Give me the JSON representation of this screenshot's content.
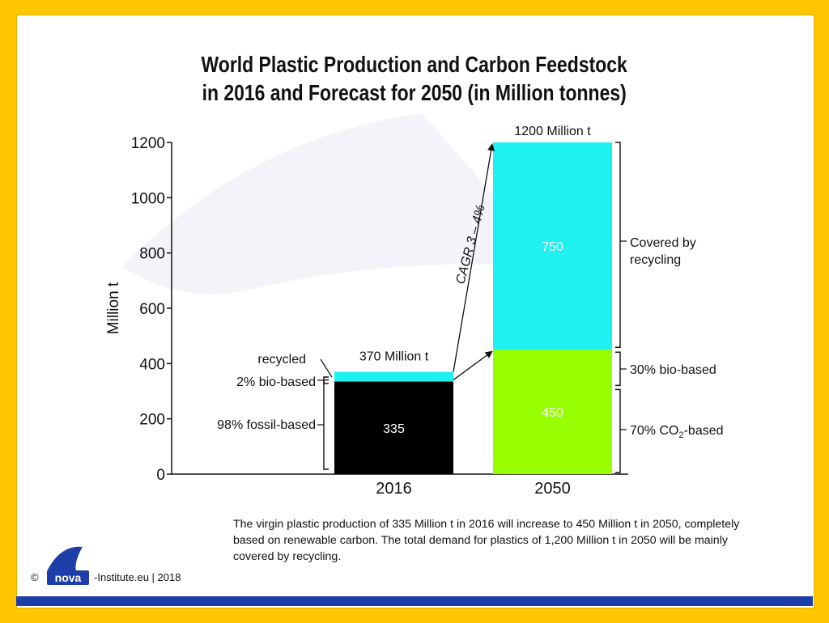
{
  "header": {
    "title_line1": "World Plastic Production and Carbon Feedstock",
    "title_line2": "in 2016 and Forecast for 2050 (in Million tonnes)"
  },
  "chart_data": {
    "type": "bar",
    "stacked": true,
    "ylabel": "Million t",
    "ylim": [
      0,
      1200
    ],
    "yticks": [
      0,
      200,
      400,
      600,
      800,
      1000,
      1200
    ],
    "categories": [
      "2016",
      "2050"
    ],
    "bars": [
      {
        "category": "2016",
        "total_label": "370 Million t",
        "segments": [
          {
            "label": "98% fossil-based",
            "value": 335,
            "value_label": "335",
            "color": "#000000"
          },
          {
            "label": "2% bio-based",
            "value": 0,
            "color": "#98ff00"
          },
          {
            "label": "recycled",
            "value": 35,
            "color": "#1ff0f0"
          }
        ]
      },
      {
        "category": "2050",
        "total_label": "1200 Million t",
        "segments": [
          {
            "label": "30% bio-based / 70% CO2-based",
            "value": 450,
            "value_label": "450",
            "color": "#98ff00"
          },
          {
            "label": "Covered by recycling",
            "value": 750,
            "value_label": "750",
            "color": "#1ff0f0"
          }
        ]
      }
    ],
    "annotations": {
      "cagr": "CAGR 3 – 4%",
      "left": {
        "recycled": "recycled",
        "bio": "2% bio-based",
        "fossil": "98% fossil-based"
      },
      "right": {
        "recycling_line1": "Covered by",
        "recycling_line2": "recycling",
        "bio": "30% bio-based",
        "co2_prefix": "70% CO",
        "co2_sub": "2",
        "co2_suffix": "-based"
      }
    }
  },
  "caption": "The virgin plastic production of 335 Million t in 2016 will increase to 450 Million t in 2050, completely based on renewable carbon. The total demand for plastics of 1,200 Million t in 2050 will be mainly covered by recycling.",
  "footer": {
    "copyright_symbol": "©",
    "logo_text": "nova",
    "institute": "-Institute.eu | 2018"
  },
  "colors": {
    "border": "#ffc600",
    "band": "#1d3da8",
    "cyan": "#1ff0f0",
    "green": "#98ff00",
    "black": "#000000"
  }
}
